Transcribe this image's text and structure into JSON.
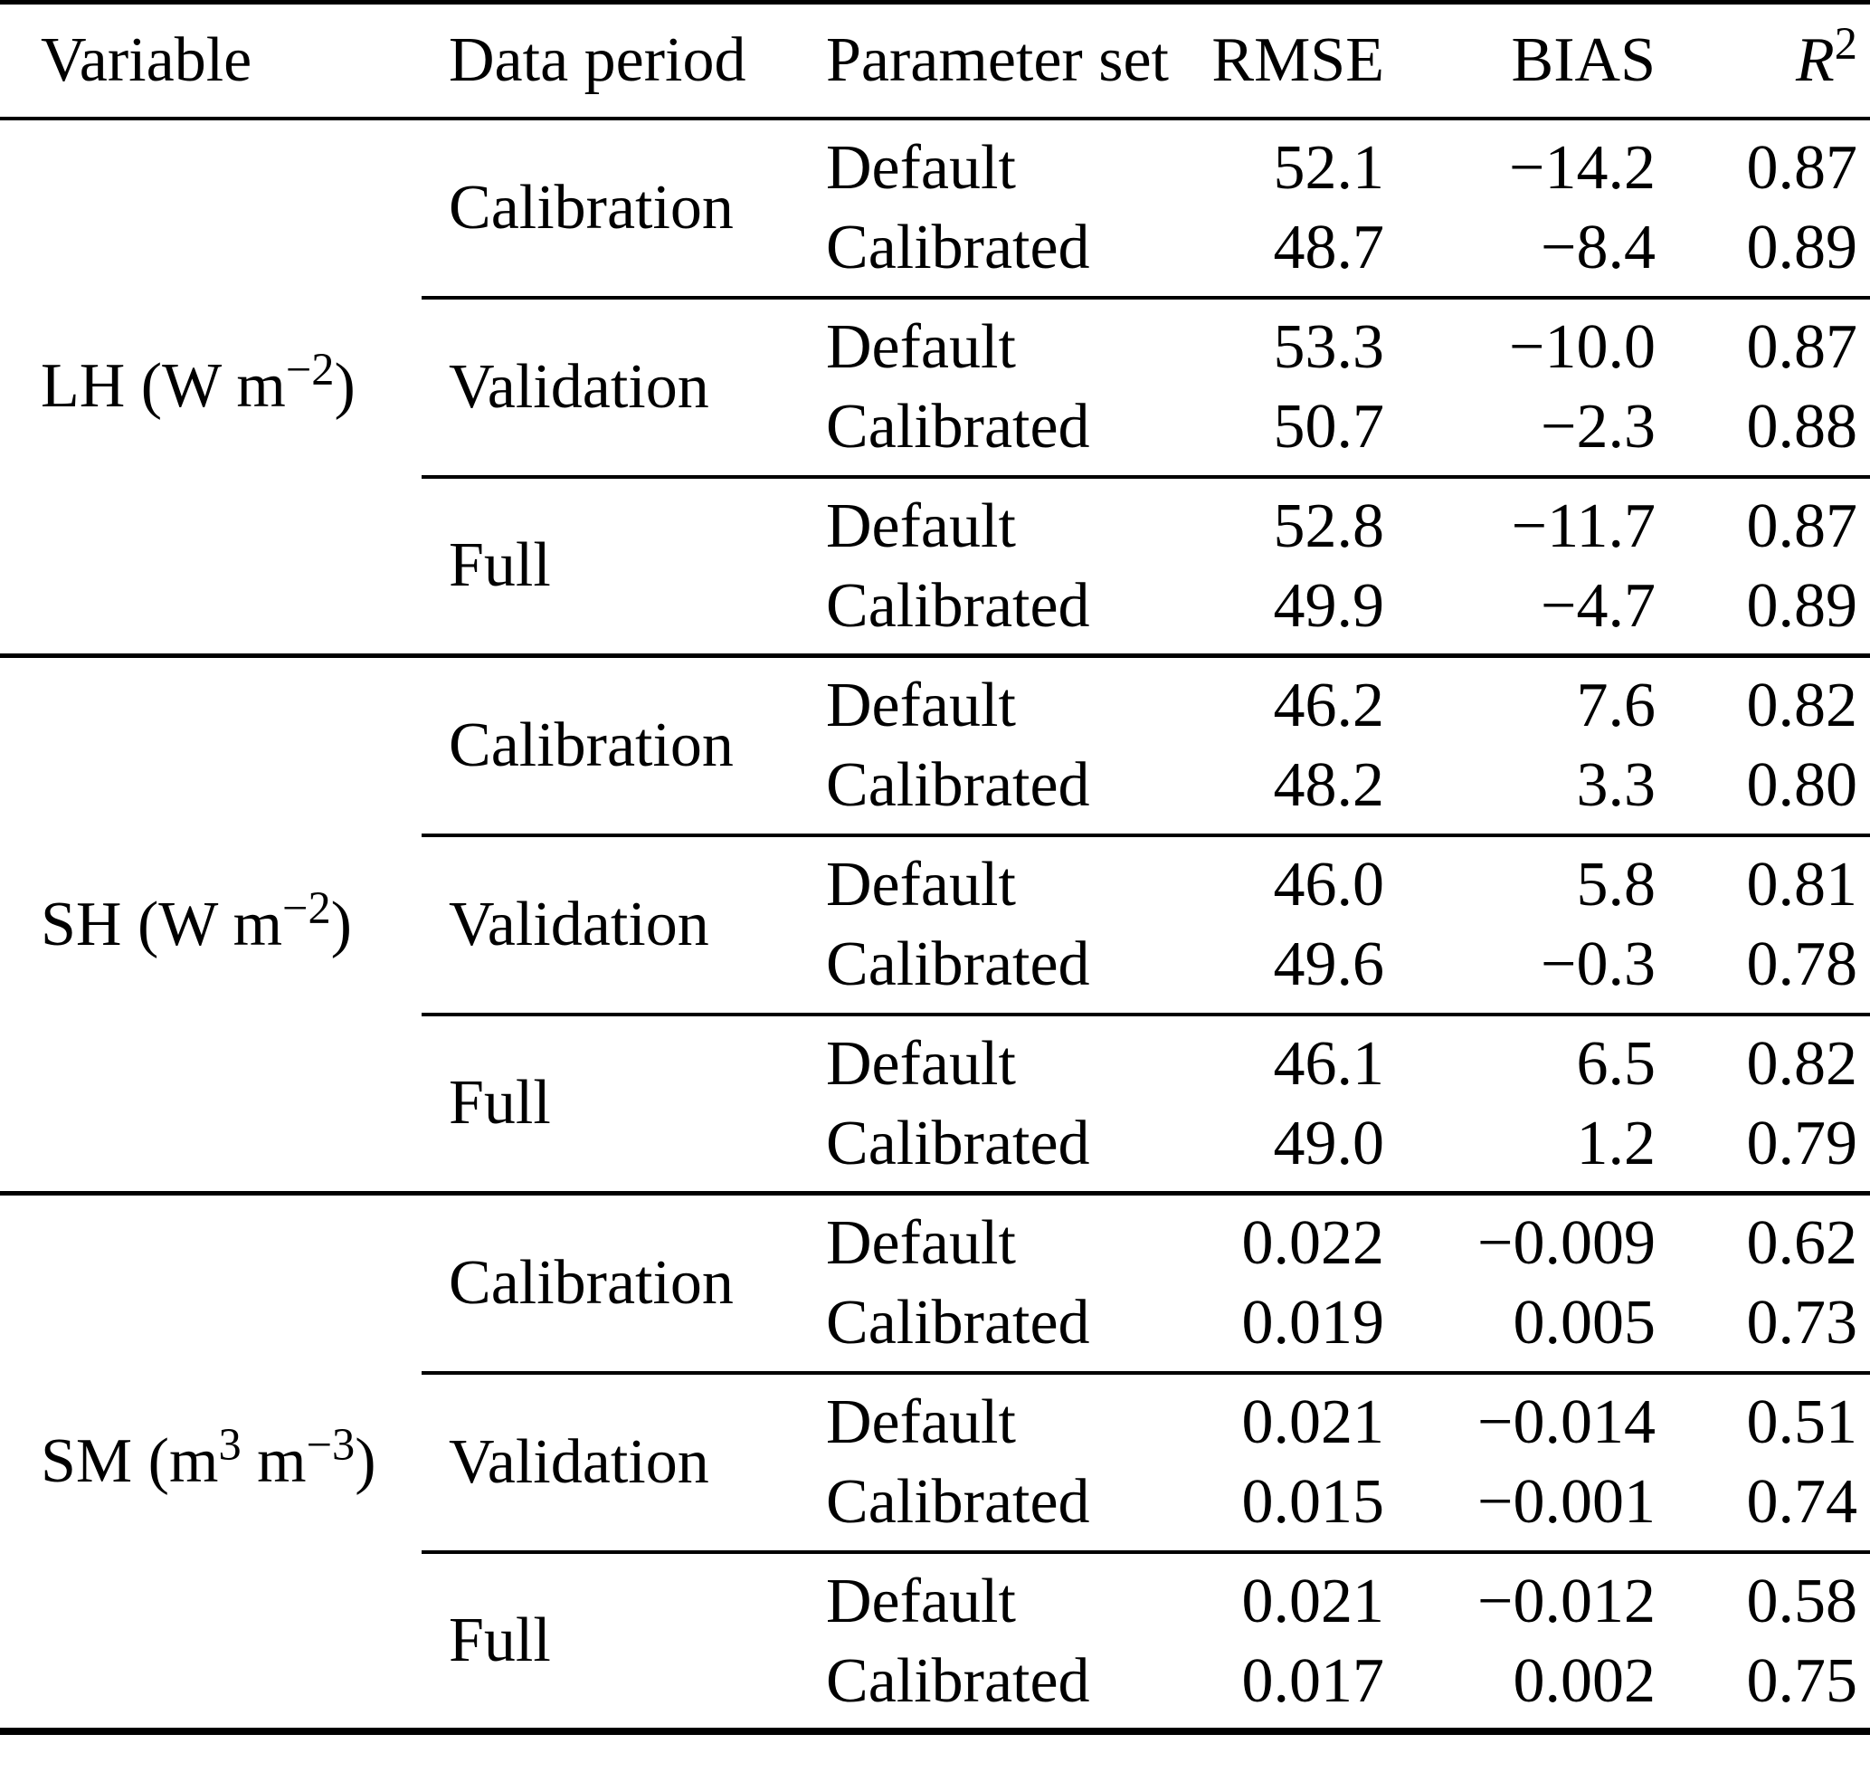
{
  "table": {
    "headers": {
      "variable": "Variable",
      "data_period": "Data period",
      "parameter_set": "Parameter set",
      "rmse": "RMSE",
      "bias": "BIAS",
      "r2_parts": [
        {
          "text": "R",
          "italic": true
        },
        {
          "text": "2",
          "sup": true
        }
      ]
    },
    "sections": [
      {
        "variable_parts": [
          {
            "text": "LH (W m"
          },
          {
            "text": "−2",
            "sup": true
          },
          {
            "text": ")"
          }
        ],
        "groups": [
          {
            "period": "Calibration",
            "rows": [
              {
                "set": "Default",
                "rmse": "52.1",
                "bias": "−14.2",
                "r2": "0.87"
              },
              {
                "set": "Calibrated",
                "rmse": "48.7",
                "bias": "−8.4",
                "r2": "0.89"
              }
            ]
          },
          {
            "period": "Validation",
            "rows": [
              {
                "set": "Default",
                "rmse": "53.3",
                "bias": "−10.0",
                "r2": "0.87"
              },
              {
                "set": "Calibrated",
                "rmse": "50.7",
                "bias": "−2.3",
                "r2": "0.88"
              }
            ]
          },
          {
            "period": "Full",
            "rows": [
              {
                "set": "Default",
                "rmse": "52.8",
                "bias": "−11.7",
                "r2": "0.87"
              },
              {
                "set": "Calibrated",
                "rmse": "49.9",
                "bias": "−4.7",
                "r2": "0.89"
              }
            ]
          }
        ]
      },
      {
        "variable_parts": [
          {
            "text": "SH (W m"
          },
          {
            "text": "−2",
            "sup": true
          },
          {
            "text": ")"
          }
        ],
        "groups": [
          {
            "period": "Calibration",
            "rows": [
              {
                "set": "Default",
                "rmse": "46.2",
                "bias": "7.6",
                "r2": "0.82"
              },
              {
                "set": "Calibrated",
                "rmse": "48.2",
                "bias": "3.3",
                "r2": "0.80"
              }
            ]
          },
          {
            "period": "Validation",
            "rows": [
              {
                "set": "Default",
                "rmse": "46.0",
                "bias": "5.8",
                "r2": "0.81"
              },
              {
                "set": "Calibrated",
                "rmse": "49.6",
                "bias": "−0.3",
                "r2": "0.78"
              }
            ]
          },
          {
            "period": "Full",
            "rows": [
              {
                "set": "Default",
                "rmse": "46.1",
                "bias": "6.5",
                "r2": "0.82"
              },
              {
                "set": "Calibrated",
                "rmse": "49.0",
                "bias": "1.2",
                "r2": "0.79"
              }
            ]
          }
        ]
      },
      {
        "variable_parts": [
          {
            "text": "SM (m"
          },
          {
            "text": "3",
            "sup": true
          },
          {
            "text": " m"
          },
          {
            "text": "−3",
            "sup": true
          },
          {
            "text": ")"
          }
        ],
        "groups": [
          {
            "period": "Calibration",
            "rows": [
              {
                "set": "Default",
                "rmse": "0.022",
                "bias": "−0.009",
                "r2": "0.62"
              },
              {
                "set": "Calibrated",
                "rmse": "0.019",
                "bias": "0.005",
                "r2": "0.73"
              }
            ]
          },
          {
            "period": "Validation",
            "rows": [
              {
                "set": "Default",
                "rmse": "0.021",
                "bias": "−0.014",
                "r2": "0.51"
              },
              {
                "set": "Calibrated",
                "rmse": "0.015",
                "bias": "−0.001",
                "r2": "0.74"
              }
            ]
          },
          {
            "period": "Full",
            "rows": [
              {
                "set": "Default",
                "rmse": "0.021",
                "bias": "−0.012",
                "r2": "0.58"
              },
              {
                "set": "Calibrated",
                "rmse": "0.017",
                "bias": "0.002",
                "r2": "0.75"
              }
            ]
          }
        ]
      }
    ]
  }
}
